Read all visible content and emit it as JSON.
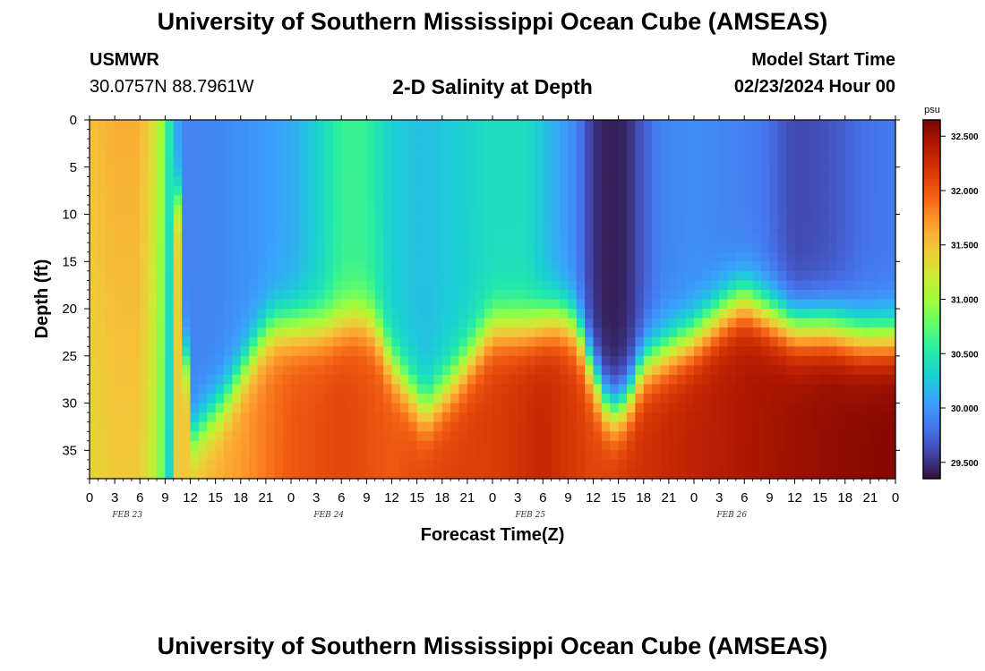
{
  "title": "University of Southern Mississippi Ocean Cube (AMSEAS)",
  "title_repeat": "University of Southern Mississippi Ocean Cube (AMSEAS)",
  "station": "USMWR",
  "coordinates": "30.0757N  88.7961W",
  "subtitle": "2-D Salinity at Depth",
  "model_start_label": "Model Start Time",
  "model_start_value": "02/23/2024 Hour 00",
  "chart_data": {
    "type": "heatmap",
    "title": "2-D Salinity at Depth",
    "xlabel": "Forecast Time(Z)",
    "ylabel": "Depth (ft)",
    "x_hours_range": [
      0,
      96
    ],
    "ylim": [
      0,
      38
    ],
    "x_ticks": [
      "0",
      "3",
      "6",
      "9",
      "12",
      "15",
      "18",
      "21",
      "0",
      "3",
      "6",
      "9",
      "12",
      "15",
      "18",
      "21",
      "0",
      "3",
      "6",
      "9",
      "12",
      "15",
      "18",
      "21",
      "0",
      "3",
      "6",
      "9",
      "12",
      "15",
      "18",
      "21",
      "0"
    ],
    "y_ticks": [
      "0",
      "5",
      "10",
      "15",
      "20",
      "25",
      "30",
      "35"
    ],
    "y_tick_values": [
      0,
      5,
      10,
      15,
      20,
      25,
      30,
      35
    ],
    "date_labels": [
      "FEB 23",
      "FEB 24",
      "FEB 25",
      "FEB 26"
    ],
    "colorbar": {
      "unit": "psu",
      "min": 29.35,
      "max": 32.65,
      "tick_values": [
        32.5,
        32.0,
        31.5,
        31.0,
        30.5,
        30.0,
        29.5
      ],
      "tick_labels": [
        "32.500",
        "32.000",
        "31.500",
        "31.000",
        "30.500",
        "30.000",
        "29.500"
      ],
      "colors": [
        "#30123b",
        "#4145ab",
        "#4675ed",
        "#39a2fc",
        "#1bcfd4",
        "#24eca6",
        "#61fc6c",
        "#a4fc3b",
        "#d1e834",
        "#f3c63a",
        "#fe9b2d",
        "#f36315",
        "#d93806",
        "#b11901",
        "#7a0402"
      ]
    },
    "surface_profile_hours": [
      0,
      3,
      6,
      8,
      9,
      10,
      11,
      14,
      20,
      24,
      27,
      30,
      33,
      36,
      40,
      44,
      48,
      52,
      58,
      60,
      62,
      64,
      66,
      68,
      72,
      76,
      80,
      84,
      88,
      92,
      96
    ],
    "surface_profile_psu": [
      31.5,
      31.6,
      31.6,
      31.2,
      30.8,
      30.2,
      29.9,
      29.9,
      30.0,
      30.1,
      30.3,
      30.6,
      30.6,
      30.3,
      30.2,
      30.3,
      30.4,
      30.4,
      29.9,
      29.5,
      29.4,
      29.45,
      29.7,
      29.9,
      29.95,
      29.9,
      29.85,
      29.6,
      29.65,
      29.8,
      29.85
    ],
    "halocline_depth_hours": [
      0,
      10,
      12,
      16,
      20,
      22,
      24,
      28,
      32,
      34,
      36,
      40,
      44,
      48,
      52,
      56,
      58,
      60,
      62,
      64,
      66,
      68,
      72,
      76,
      78,
      80,
      84,
      88,
      92,
      96
    ],
    "halocline_depth_ft": [
      0,
      0,
      34,
      30,
      24,
      22,
      22,
      22,
      21,
      22,
      26,
      31,
      27,
      22,
      22,
      21,
      22,
      27,
      31,
      30,
      26,
      25,
      23,
      20,
      19,
      20,
      22,
      22,
      23,
      23
    ],
    "bottom_psu_hours": [
      0,
      11,
      18,
      24,
      30,
      36,
      40,
      48,
      54,
      60,
      64,
      72,
      80,
      88,
      96
    ],
    "bottom_psu": [
      31.45,
      31.45,
      31.7,
      32.0,
      32.1,
      32.0,
      32.1,
      32.15,
      32.3,
      32.1,
      32.2,
      32.35,
      32.45,
      32.55,
      32.6
    ]
  }
}
